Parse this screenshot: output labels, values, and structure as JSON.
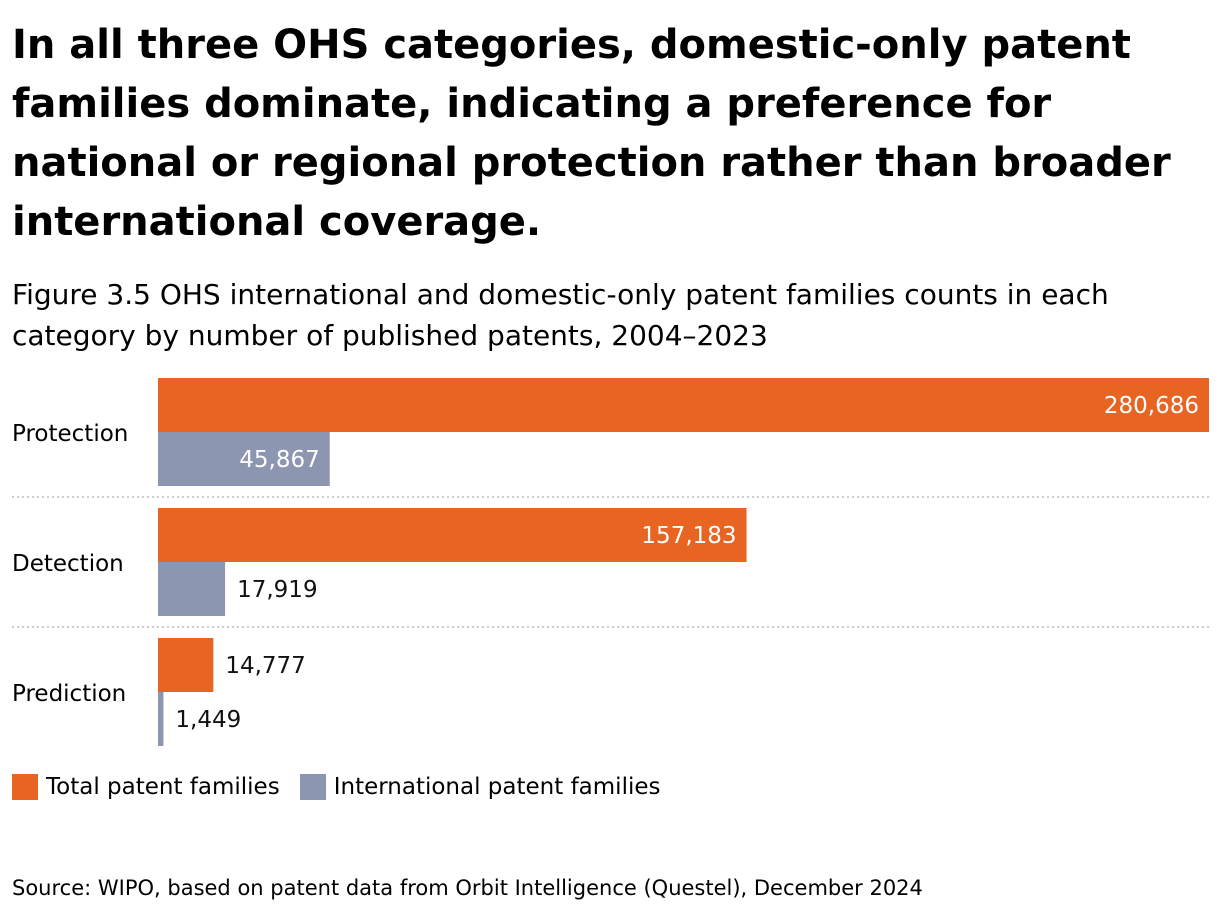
{
  "headline": "In all three OHS categories, domestic-only patent families dominate, indicating a preference for national or regional protection rather than broader international coverage.",
  "subtitle": "Figure 3.5 OHS international and domestic-only patent families counts in each category by number of published patents, 2004–2023",
  "source": "Source: WIPO, based on patent data from Orbit Intelligence (Questel), December 2024",
  "colors": {
    "total": "#E86423",
    "international": "#8C96B1",
    "divider": "#BBBBBB",
    "label_inside": "#FFFFFF",
    "label_outside": "#111111"
  },
  "legend": [
    {
      "label": "Total patent families",
      "color": "#E86423"
    },
    {
      "label": "International patent families",
      "color": "#8C96B1"
    }
  ],
  "chart_data": {
    "type": "bar",
    "orientation": "horizontal",
    "title": "Figure 3.5 OHS international and domestic-only patent families counts in each category by number of published patents, 2004–2023",
    "categories": [
      "Protection",
      "Detection",
      "Prediction"
    ],
    "series": [
      {
        "name": "Total patent families",
        "values": [
          280686,
          157183,
          14777
        ],
        "labels": [
          "280,686",
          "157,183",
          "14,777"
        ]
      },
      {
        "name": "International patent families",
        "values": [
          45867,
          17919,
          1449
        ],
        "labels": [
          "45,867",
          "17,919",
          "1,449"
        ]
      }
    ],
    "xlim": [
      0,
      280686
    ],
    "xlabel": "",
    "ylabel": "",
    "grid": false,
    "legend_position": "bottom-left"
  }
}
